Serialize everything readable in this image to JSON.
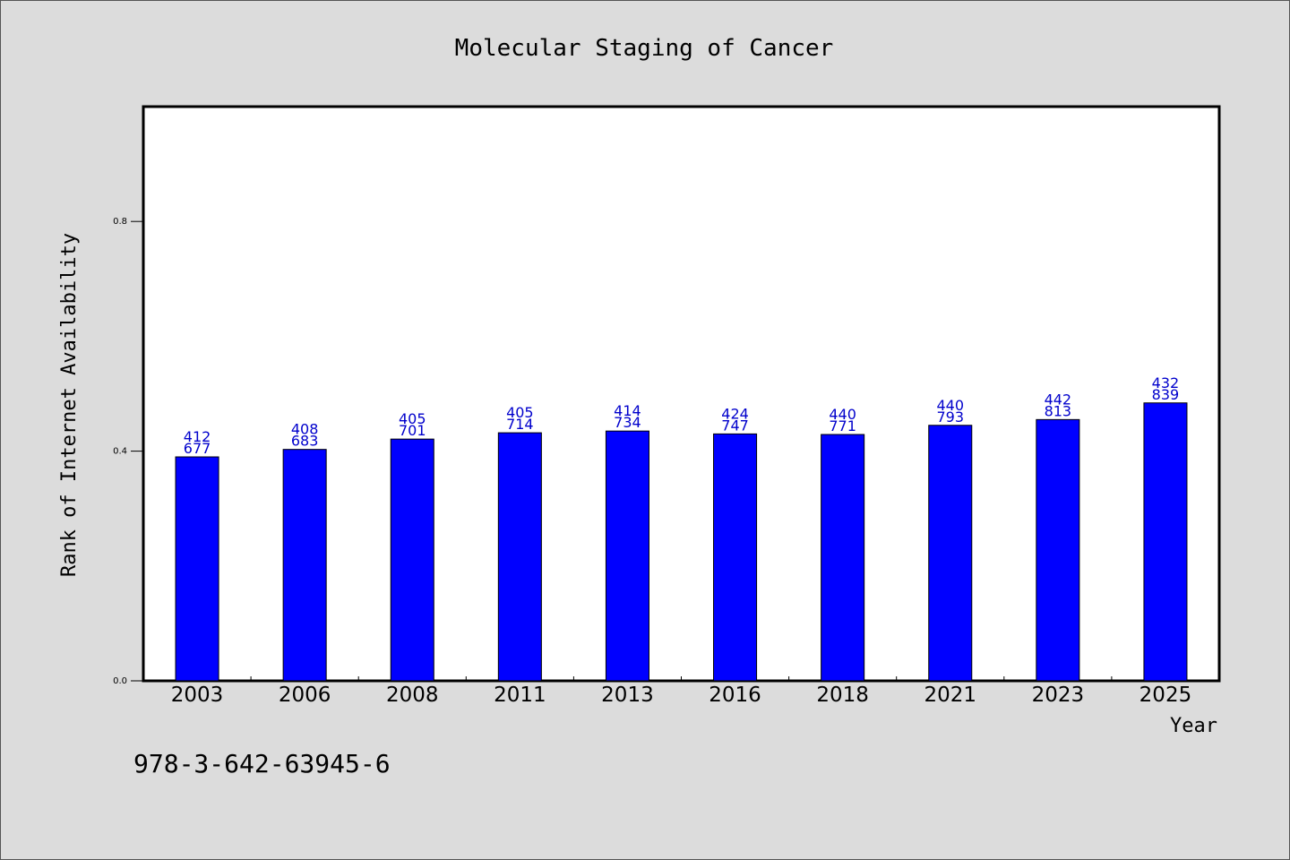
{
  "chart_data": {
    "type": "bar",
    "title": "Molecular Staging of Cancer",
    "xlabel": "Year",
    "ylabel": "Rank of Internet Availability",
    "ylim": [
      0,
      1.0
    ],
    "yticks": [
      "0.0",
      "0.4",
      "0.8"
    ],
    "ytick_values": [
      0.0,
      0.4,
      0.8
    ],
    "grid": false,
    "categories": [
      "2003",
      "2006",
      "2008",
      "2011",
      "2013",
      "2016",
      "2018",
      "2021",
      "2023",
      "2025"
    ],
    "series": [
      {
        "values": [
          0.39,
          0.403,
          0.421,
          0.432,
          0.435,
          0.43,
          0.429,
          0.445,
          0.455,
          0.484
        ],
        "labels_top": [
          "412",
          "408",
          "405",
          "405",
          "414",
          "424",
          "440",
          "440",
          "442",
          "432"
        ],
        "labels_bottom": [
          "677",
          "683",
          "701",
          "714",
          "734",
          "747",
          "771",
          "793",
          "813",
          "839"
        ]
      }
    ],
    "colors": {
      "bar": "#0000ff",
      "data_label": "#0000cc",
      "background": "#dcdcdc",
      "plot_background": "#ffffff"
    }
  },
  "footnote": "978-3-642-63945-6"
}
